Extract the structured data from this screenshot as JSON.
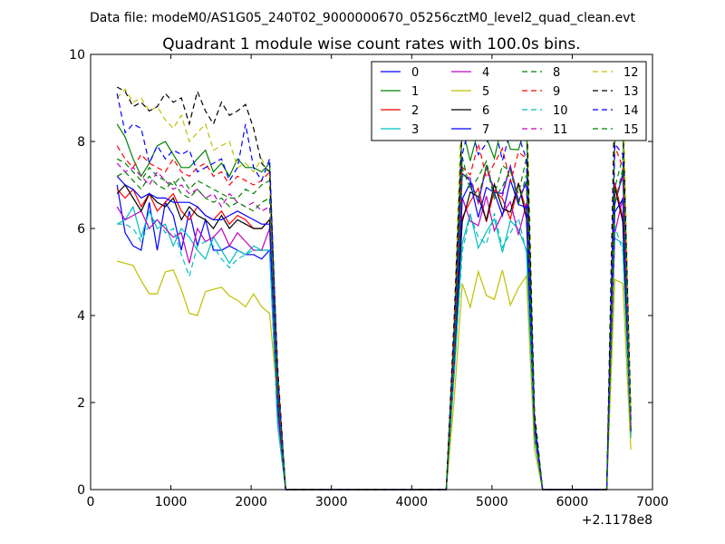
{
  "chart_data": {
    "type": "line",
    "suptitle": "Data file: modeM0/AS1G05_240T02_9000000670_05256cztM0_level2_quad_clean.evt",
    "title": "Quadrant 1 module wise count rates with 100.0s bins.",
    "xlabel": "",
    "ylabel": "",
    "xlim": [
      0,
      7000
    ],
    "ylim": [
      0,
      10
    ],
    "x_ticks": [
      0,
      1000,
      2000,
      3000,
      4000,
      5000,
      6000,
      7000
    ],
    "x_tick_labels": [
      "0",
      "1000",
      "2000",
      "3000",
      "4000",
      "5000",
      "6000",
      "7000"
    ],
    "y_ticks": [
      0,
      2,
      4,
      6,
      8,
      10
    ],
    "y_tick_labels": [
      "0",
      "2",
      "4",
      "6",
      "8",
      "10"
    ],
    "x_offset_label": "+2.1178e8",
    "grid": false,
    "legend_position": "top-right",
    "legend_columns": 4,
    "segments": [
      {
        "x": [
          330,
          430,
          530,
          630,
          730,
          830,
          930,
          1030,
          1130,
          1230,
          1330,
          1430,
          1530,
          1630,
          1730,
          1830,
          1930,
          2030,
          2130,
          2230,
          2330,
          2430
        ],
        "levels": [
          0,
          0,
          0,
          0,
          0,
          0,
          0,
          0,
          0,
          0,
          0,
          0,
          0,
          0,
          0,
          0,
          0,
          0,
          0,
          0,
          -1,
          -5
        ]
      },
      {
        "x": [
          2430,
          4430
        ],
        "levels": [
          -5,
          -5
        ]
      },
      {
        "x": [
          4430,
          4530,
          4630,
          4730,
          4830,
          4930,
          5030,
          5130,
          5230,
          5330,
          5430,
          5530,
          5630
        ],
        "levels": [
          -5,
          -2,
          0,
          0,
          0,
          0,
          0,
          0,
          0,
          0,
          0,
          -1,
          -5
        ]
      },
      {
        "x": [
          5630,
          6430
        ],
        "levels": [
          -5,
          -5
        ]
      },
      {
        "x": [
          6430,
          6530,
          6630,
          6730
        ],
        "levels": [
          -5,
          0,
          0,
          -1
        ]
      }
    ],
    "series": [
      {
        "name": "0",
        "color": "#0000ff",
        "dash": "solid",
        "base": 7.0,
        "values": [
          7.0,
          5.9,
          5.6,
          5.5,
          6.6,
          5.5,
          6.6,
          6.3,
          5.5,
          6.4,
          5.6,
          6.2,
          5.5,
          5.5,
          5.6,
          5.5,
          5.4,
          5.4,
          5.3,
          5.5,
          1.5,
          0
        ]
      },
      {
        "name": "1",
        "color": "#008000",
        "dash": "solid",
        "base": 8.0,
        "values": [
          8.4,
          8.1,
          7.6,
          7.2,
          7.5,
          7.9,
          8.0,
          7.7,
          7.4,
          7.4,
          7.6,
          7.8,
          7.3,
          7.5,
          7.2,
          7.6,
          7.4,
          7.4,
          7.3,
          7.5,
          2.5,
          0
        ]
      },
      {
        "name": "2",
        "color": "#ff0000",
        "dash": "solid",
        "base": 6.6,
        "values": [
          6.9,
          6.7,
          6.9,
          6.5,
          6.8,
          6.4,
          6.6,
          6.8,
          6.4,
          6.2,
          6.5,
          6.3,
          6.2,
          6.4,
          6.1,
          6.3,
          6.2,
          6.0,
          6.0,
          6.2,
          2.0,
          0
        ]
      },
      {
        "name": "3",
        "color": "#00bfbf",
        "dash": "solid",
        "base": 5.9,
        "values": [
          6.1,
          6.2,
          6.5,
          5.8,
          6.4,
          6.0,
          6.1,
          5.6,
          6.0,
          5.8,
          5.5,
          5.3,
          5.8,
          5.5,
          5.2,
          5.5,
          5.4,
          5.6,
          5.5,
          5.5,
          1.5,
          0
        ]
      },
      {
        "name": "4",
        "color": "#bf00bf",
        "dash": "solid",
        "base": 6.3,
        "values": [
          6.5,
          6.2,
          6.3,
          6.4,
          6.0,
          6.2,
          6.0,
          5.8,
          5.9,
          5.2,
          6.0,
          5.7,
          5.8,
          6.0,
          5.6,
          5.9,
          5.7,
          5.5,
          5.5,
          6.0,
          1.8,
          0
        ]
      },
      {
        "name": "5",
        "color": "#bfbf00",
        "dash": "solid",
        "base": 4.6,
        "values": [
          5.25,
          5.2,
          5.15,
          4.8,
          4.5,
          4.5,
          5.0,
          5.05,
          4.6,
          4.05,
          4.0,
          4.55,
          4.6,
          4.65,
          4.45,
          4.35,
          4.2,
          4.5,
          4.2,
          4.05,
          2.0,
          0
        ]
      },
      {
        "name": "6",
        "color": "#000000",
        "dash": "solid",
        "base": 6.6,
        "values": [
          6.8,
          7.0,
          6.7,
          6.4,
          6.8,
          6.6,
          6.5,
          6.7,
          6.2,
          6.5,
          6.3,
          6.2,
          6.0,
          6.3,
          6.0,
          6.2,
          6.1,
          6.0,
          6.0,
          6.2,
          2.0,
          0
        ]
      },
      {
        "name": "7",
        "color": "#0000ff",
        "dash": "solid",
        "base": 6.7,
        "values": [
          7.2,
          7.0,
          6.9,
          6.7,
          6.8,
          6.7,
          6.7,
          6.6,
          6.6,
          6.6,
          6.5,
          6.3,
          6.2,
          6.2,
          6.3,
          6.4,
          6.3,
          6.2,
          6.1,
          6.1,
          2.0,
          0
        ]
      },
      {
        "name": "8",
        "color": "#008000",
        "dash": "dashed",
        "base": 7.2,
        "values": [
          7.6,
          7.5,
          7.3,
          7.1,
          7.4,
          7.2,
          7.1,
          7.0,
          7.2,
          6.9,
          7.1,
          7.0,
          6.9,
          6.8,
          6.7,
          6.7,
          6.9,
          6.8,
          7.0,
          7.1,
          2.3,
          0
        ]
      },
      {
        "name": "9",
        "color": "#ff0000",
        "dash": "dashed",
        "base": 7.5,
        "values": [
          7.9,
          7.6,
          7.4,
          7.7,
          7.5,
          7.4,
          7.3,
          7.6,
          7.3,
          7.2,
          7.4,
          7.5,
          7.2,
          7.3,
          7.0,
          7.2,
          7.1,
          7.0,
          7.1,
          7.3,
          2.4,
          0
        ]
      },
      {
        "name": "10",
        "color": "#00bfbf",
        "dash": "dashed",
        "base": 5.9,
        "values": [
          6.1,
          6.1,
          6.0,
          5.7,
          6.1,
          6.2,
          5.9,
          6.0,
          5.4,
          4.9,
          5.6,
          5.7,
          5.6,
          5.3,
          5.1,
          5.3,
          5.4,
          5.5,
          5.5,
          5.5,
          1.5,
          0
        ]
      },
      {
        "name": "11",
        "color": "#bf00bf",
        "dash": "dashed",
        "base": 7.0,
        "values": [
          7.5,
          7.3,
          7.4,
          7.2,
          7.0,
          7.3,
          7.1,
          6.9,
          7.0,
          6.8,
          6.9,
          6.7,
          6.8,
          6.5,
          6.8,
          6.6,
          6.5,
          6.6,
          6.4,
          6.5,
          2.2,
          0
        ]
      },
      {
        "name": "12",
        "color": "#bfbf00",
        "dash": "dashed",
        "base": 8.9,
        "values": [
          9.0,
          9.2,
          8.9,
          9.0,
          8.7,
          8.8,
          8.5,
          8.3,
          8.6,
          8.0,
          8.2,
          8.4,
          7.8,
          7.9,
          8.0,
          7.4,
          7.5,
          7.3,
          7.6,
          7.2,
          2.8,
          0
        ]
      },
      {
        "name": "13",
        "color": "#000000",
        "dash": "dashed",
        "base": 8.8,
        "values": [
          9.25,
          9.15,
          8.8,
          8.9,
          8.7,
          8.8,
          9.1,
          8.9,
          9.0,
          8.4,
          9.15,
          8.7,
          8.4,
          8.9,
          8.6,
          8.7,
          8.85,
          8.3,
          7.5,
          7.3,
          2.8,
          0
        ]
      },
      {
        "name": "14",
        "color": "#0000ff",
        "dash": "dashed",
        "base": 8.0,
        "values": [
          9.1,
          8.2,
          8.4,
          8.3,
          7.5,
          7.9,
          7.6,
          7.8,
          7.7,
          7.8,
          7.3,
          7.4,
          7.5,
          7.6,
          7.1,
          7.4,
          8.4,
          7.4,
          7.1,
          7.6,
          2.6,
          0
        ]
      },
      {
        "name": "15",
        "color": "#008000",
        "dash": "dashed",
        "base": 7.0,
        "values": [
          7.2,
          7.3,
          7.1,
          6.9,
          7.2,
          7.0,
          6.9,
          7.1,
          6.8,
          6.7,
          6.9,
          6.7,
          6.6,
          6.7,
          6.5,
          6.6,
          6.5,
          6.4,
          6.6,
          6.7,
          2.2,
          0
        ]
      }
    ]
  }
}
